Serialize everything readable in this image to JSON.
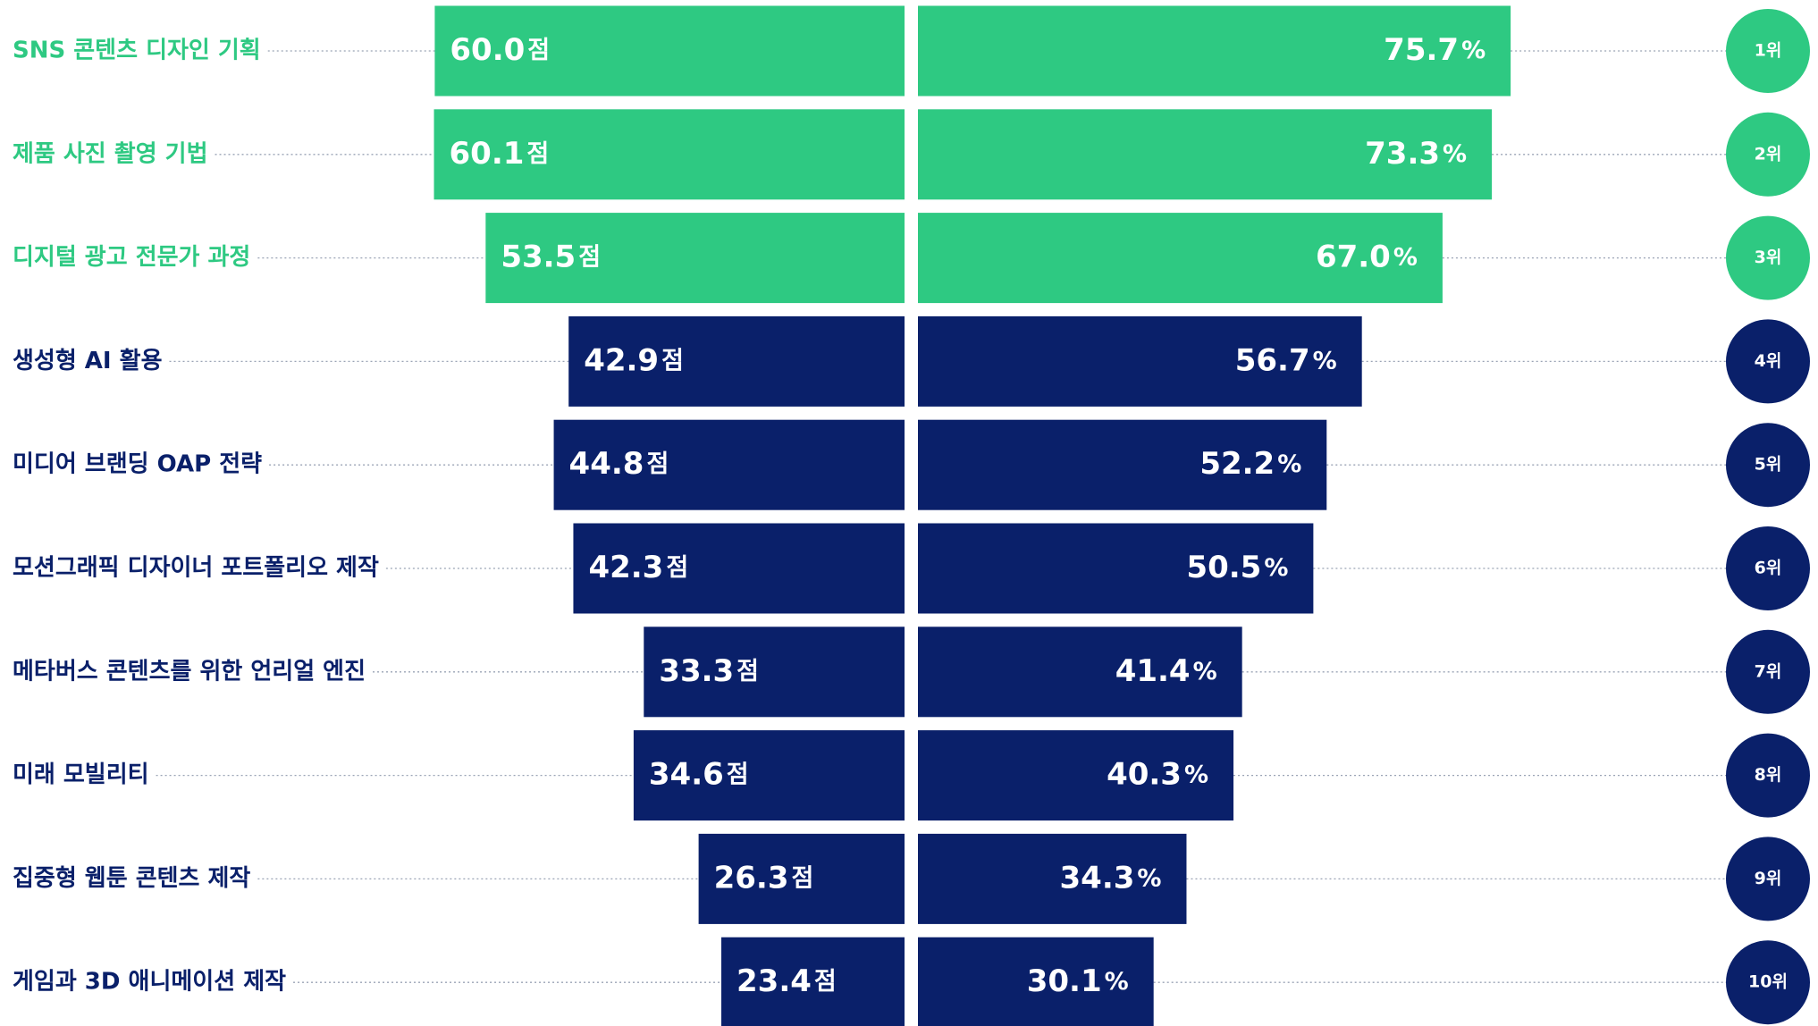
{
  "chart_data": {
    "type": "butterfly",
    "categories": [
      "SNS 콘텐츠 디자인 기획",
      "제품 사진 촬영 기법",
      "디지털 광고 전문가 과정",
      "생성형 AI 활용",
      "미디어 브랜딩 OAP 전략",
      "모션그래픽 디자이너 포트폴리오 제작",
      "메타버스 콘텐츠를 위한 언리얼 엔진",
      "미래 모빌리티",
      "집중형 웹툰 콘텐츠 제작",
      "게임과 3D 애니메이션 제작"
    ],
    "series": [
      {
        "values": [
          60.0,
          60.1,
          53.5,
          42.9,
          44.8,
          42.3,
          33.3,
          34.6,
          26.3,
          23.4
        ],
        "value_labels": [
          "60.0",
          "60.1",
          "53.5",
          "42.9",
          "44.8",
          "42.3",
          "33.3",
          "34.6",
          "26.3",
          "23.4"
        ],
        "unit": "점"
      },
      {
        "values": [
          75.7,
          73.3,
          67.0,
          56.7,
          52.2,
          50.5,
          41.4,
          40.3,
          34.3,
          30.1
        ],
        "value_labels": [
          "75.7",
          "73.3",
          "67.0",
          "56.7",
          "52.2",
          "50.5",
          "41.4",
          "40.3",
          "34.3",
          "30.1"
        ],
        "unit": "%"
      }
    ],
    "colors": [
      "#2ec982",
      "#2ec982",
      "#2ec982",
      "#0a206a",
      "#0a206a",
      "#0a206a",
      "#0a206a",
      "#0a206a",
      "#0a206a",
      "#0a206a"
    ],
    "ranks": [
      "1위",
      "2위",
      "3위",
      "4위",
      "5위",
      "6위",
      "7위",
      "8위",
      "9위",
      "10위"
    ]
  }
}
